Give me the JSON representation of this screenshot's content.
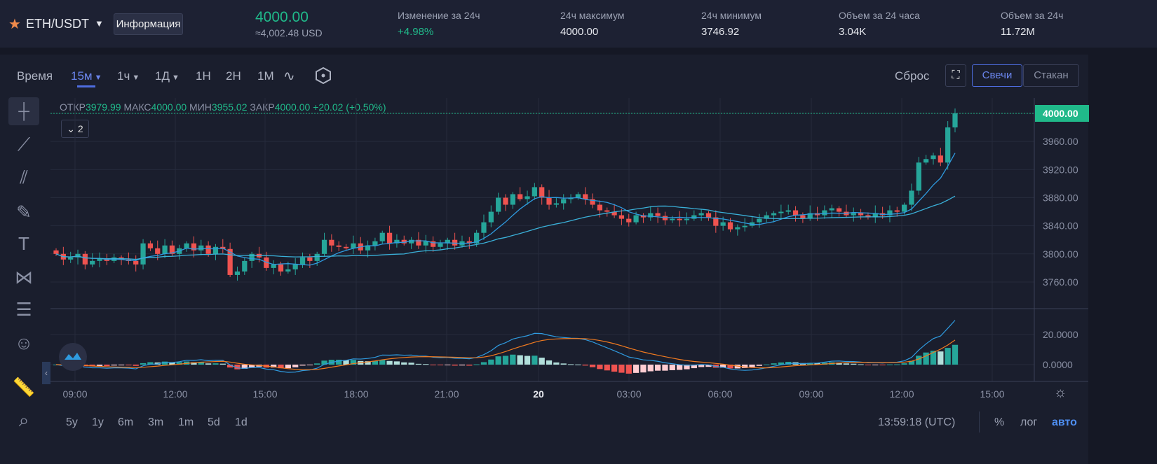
{
  "header": {
    "symbol": "ETH/USDT",
    "info_button": "Информация",
    "price": "4000.00",
    "price_usd": "≈4,002.48 USD",
    "stats": [
      {
        "label": "Изменение за 24ч",
        "value": "+4.98%",
        "green": true
      },
      {
        "label": "24ч максимум",
        "value": "4000.00"
      },
      {
        "label": "24ч минимум",
        "value": "3746.92"
      },
      {
        "label": "Объем за 24 часа",
        "value": "3.04K"
      },
      {
        "label": "Объем за 24ч",
        "value": "11.72M"
      }
    ]
  },
  "toolbar": {
    "time": "Время",
    "intervals": [
      "15м",
      "1ч",
      "1Д",
      "1Н",
      "2Н",
      "1М"
    ],
    "active": "15м",
    "reset": "Сброс",
    "candles": "Свечи",
    "orderbook": "Стакан"
  },
  "legend": {
    "open_label": "ОТКР",
    "open": "3979.99",
    "high_label": "МАКС",
    "high": "4000.00",
    "low_label": "МИН",
    "low": "3955.02",
    "close_label": "ЗАКР",
    "close": "4000.00",
    "change": "+20.02 (+0.50%)",
    "collapse": "2"
  },
  "price_axis": [
    "4000.00",
    "3960.00",
    "3920.00",
    "3880.00",
    "3840.00",
    "3800.00",
    "3760.00"
  ],
  "macd_axis": [
    "20.0000",
    "0.0000"
  ],
  "time_axis": [
    "09:00",
    "12:00",
    "15:00",
    "18:00",
    "21:00",
    "20",
    "03:00",
    "06:00",
    "09:00",
    "12:00",
    "15:00"
  ],
  "bottom": {
    "ranges": [
      "5y",
      "1y",
      "6m",
      "3m",
      "1m",
      "5d",
      "1d"
    ],
    "clock": "13:59:18 (UTC)",
    "pct": "%",
    "log": "лог",
    "auto": "авто"
  },
  "colors": {
    "up": "#26a69a",
    "down": "#ef5350",
    "accent": "#20b98a",
    "blue": "#4e6de0"
  },
  "chart_data": {
    "type": "candlestick",
    "interval": "15m",
    "ylim": [
      3740,
      4010
    ],
    "closes": [
      3800,
      3792,
      3795,
      3800,
      3785,
      3790,
      3793,
      3790,
      3795,
      3792,
      3790,
      3785,
      3815,
      3808,
      3800,
      3812,
      3800,
      3808,
      3815,
      3805,
      3812,
      3800,
      3810,
      3807,
      3770,
      3775,
      3790,
      3800,
      3795,
      3780,
      3785,
      3775,
      3778,
      3785,
      3795,
      3790,
      3800,
      3820,
      3812,
      3810,
      3808,
      3815,
      3805,
      3812,
      3818,
      3830,
      3815,
      3820,
      3815,
      3820,
      3812,
      3818,
      3810,
      3815,
      3820,
      3812,
      3818,
      3815,
      3830,
      3845,
      3860,
      3880,
      3870,
      3885,
      3878,
      3882,
      3895,
      3880,
      3870,
      3872,
      3878,
      3880,
      3885,
      3878,
      3870,
      3862,
      3860,
      3855,
      3850,
      3845,
      3855,
      3852,
      3858,
      3854,
      3848,
      3850,
      3848,
      3850,
      3855,
      3858,
      3852,
      3840,
      3845,
      3835,
      3838,
      3840,
      3845,
      3850,
      3855,
      3858,
      3860,
      3862,
      3855,
      3850,
      3858,
      3855,
      3862,
      3865,
      3860,
      3855,
      3858,
      3855,
      3852,
      3858,
      3855,
      3862,
      3860,
      3870,
      3890,
      3930,
      3935,
      3940,
      3930,
      3980,
      4000
    ],
    "ma_periods": [
      7,
      25
    ],
    "indicator": "MACD(12,26,9)"
  }
}
